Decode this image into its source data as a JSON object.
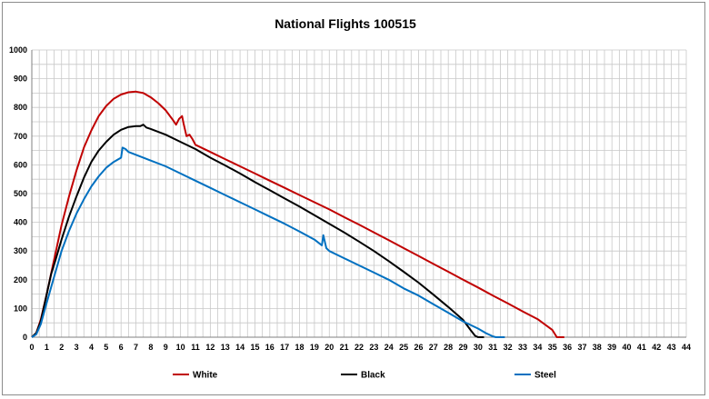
{
  "chart_data": {
    "type": "line",
    "title": "National Flights 100515",
    "xlabel": "",
    "ylabel": "",
    "xlim": [
      0,
      44
    ],
    "ylim": [
      0,
      1000
    ],
    "x_ticks": [
      "0",
      "1",
      "2",
      "3",
      "4",
      "5",
      "6",
      "7",
      "8",
      "9",
      "10",
      "11",
      "12",
      "13",
      "14",
      "15",
      "16",
      "17",
      "18",
      "19",
      "20",
      "21",
      "22",
      "23",
      "24",
      "25",
      "26",
      "27",
      "28",
      "29",
      "30",
      "31",
      "32",
      "33",
      "34",
      "35",
      "36",
      "37",
      "38",
      "39",
      "40",
      "41",
      "42",
      "43",
      "44"
    ],
    "y_ticks": [
      "0",
      "100",
      "200",
      "300",
      "400",
      "500",
      "600",
      "700",
      "800",
      "900",
      "1000"
    ],
    "grid": true,
    "legend_position": "bottom",
    "series": [
      {
        "name": "White",
        "color": "#c00000",
        "points": [
          [
            0,
            0
          ],
          [
            0.3,
            15
          ],
          [
            0.6,
            60
          ],
          [
            1,
            150
          ],
          [
            1.5,
            270
          ],
          [
            2,
            390
          ],
          [
            2.5,
            490
          ],
          [
            3,
            580
          ],
          [
            3.5,
            660
          ],
          [
            4,
            720
          ],
          [
            4.5,
            770
          ],
          [
            5,
            805
          ],
          [
            5.5,
            830
          ],
          [
            6,
            845
          ],
          [
            6.5,
            853
          ],
          [
            7,
            855
          ],
          [
            7.5,
            850
          ],
          [
            8,
            835
          ],
          [
            8.5,
            815
          ],
          [
            9,
            790
          ],
          [
            9.5,
            755
          ],
          [
            9.7,
            740
          ],
          [
            9.9,
            760
          ],
          [
            10.1,
            770
          ],
          [
            10.2,
            745
          ],
          [
            10.4,
            700
          ],
          [
            10.6,
            705
          ],
          [
            10.8,
            690
          ],
          [
            11,
            670
          ],
          [
            12,
            645
          ],
          [
            13,
            620
          ],
          [
            14,
            595
          ],
          [
            15,
            570
          ],
          [
            16,
            545
          ],
          [
            17,
            520
          ],
          [
            18,
            495
          ],
          [
            19,
            470
          ],
          [
            20,
            445
          ],
          [
            21,
            418
          ],
          [
            22,
            392
          ],
          [
            23,
            365
          ],
          [
            24,
            338
          ],
          [
            25,
            310
          ],
          [
            26,
            283
          ],
          [
            27,
            255
          ],
          [
            28,
            228
          ],
          [
            29,
            200
          ],
          [
            30,
            173
          ],
          [
            31,
            145
          ],
          [
            32,
            118
          ],
          [
            33,
            90
          ],
          [
            34,
            63
          ],
          [
            35,
            25
          ],
          [
            35.3,
            0
          ],
          [
            35.8,
            0
          ]
        ]
      },
      {
        "name": "Black",
        "color": "#000000",
        "points": [
          [
            0,
            0
          ],
          [
            0.3,
            15
          ],
          [
            0.6,
            55
          ],
          [
            1,
            150
          ],
          [
            1.3,
            220
          ],
          [
            1.6,
            270
          ],
          [
            2,
            340
          ],
          [
            2.5,
            420
          ],
          [
            3,
            490
          ],
          [
            3.5,
            555
          ],
          [
            4,
            610
          ],
          [
            4.5,
            650
          ],
          [
            5,
            680
          ],
          [
            5.5,
            705
          ],
          [
            6,
            722
          ],
          [
            6.5,
            732
          ],
          [
            7,
            735
          ],
          [
            7.3,
            735
          ],
          [
            7.5,
            740
          ],
          [
            7.7,
            730
          ],
          [
            8,
            725
          ],
          [
            9,
            705
          ],
          [
            10,
            680
          ],
          [
            11,
            655
          ],
          [
            12,
            625
          ],
          [
            13,
            598
          ],
          [
            14,
            570
          ],
          [
            15,
            540
          ],
          [
            16,
            512
          ],
          [
            17,
            483
          ],
          [
            18,
            455
          ],
          [
            19,
            425
          ],
          [
            20,
            395
          ],
          [
            21,
            365
          ],
          [
            22,
            333
          ],
          [
            23,
            300
          ],
          [
            24,
            265
          ],
          [
            25,
            228
          ],
          [
            26,
            190
          ],
          [
            27,
            148
          ],
          [
            28,
            105
          ],
          [
            29,
            60
          ],
          [
            29.5,
            25
          ],
          [
            29.8,
            5
          ],
          [
            30,
            0
          ],
          [
            30.4,
            0
          ]
        ]
      },
      {
        "name": "Steel",
        "color": "#0070c0",
        "points": [
          [
            0,
            0
          ],
          [
            0.3,
            10
          ],
          [
            0.6,
            45
          ],
          [
            1,
            120
          ],
          [
            1.5,
            210
          ],
          [
            2,
            300
          ],
          [
            2.5,
            370
          ],
          [
            3,
            430
          ],
          [
            3.5,
            480
          ],
          [
            4,
            525
          ],
          [
            4.5,
            560
          ],
          [
            5,
            590
          ],
          [
            5.5,
            610
          ],
          [
            6,
            625
          ],
          [
            6.1,
            660
          ],
          [
            6.3,
            655
          ],
          [
            6.5,
            645
          ],
          [
            7,
            635
          ],
          [
            8,
            615
          ],
          [
            9,
            595
          ],
          [
            10,
            570
          ],
          [
            11,
            545
          ],
          [
            12,
            520
          ],
          [
            13,
            495
          ],
          [
            14,
            470
          ],
          [
            15,
            445
          ],
          [
            16,
            420
          ],
          [
            17,
            395
          ],
          [
            18,
            368
          ],
          [
            19,
            340
          ],
          [
            19.5,
            320
          ],
          [
            19.6,
            355
          ],
          [
            19.8,
            310
          ],
          [
            20,
            300
          ],
          [
            21,
            275
          ],
          [
            22,
            250
          ],
          [
            23,
            225
          ],
          [
            24,
            200
          ],
          [
            25,
            170
          ],
          [
            26,
            145
          ],
          [
            27,
            115
          ],
          [
            28,
            85
          ],
          [
            29,
            55
          ],
          [
            30,
            30
          ],
          [
            30.5,
            15
          ],
          [
            31,
            3
          ],
          [
            31.2,
            0
          ],
          [
            31.8,
            0
          ]
        ]
      }
    ]
  }
}
